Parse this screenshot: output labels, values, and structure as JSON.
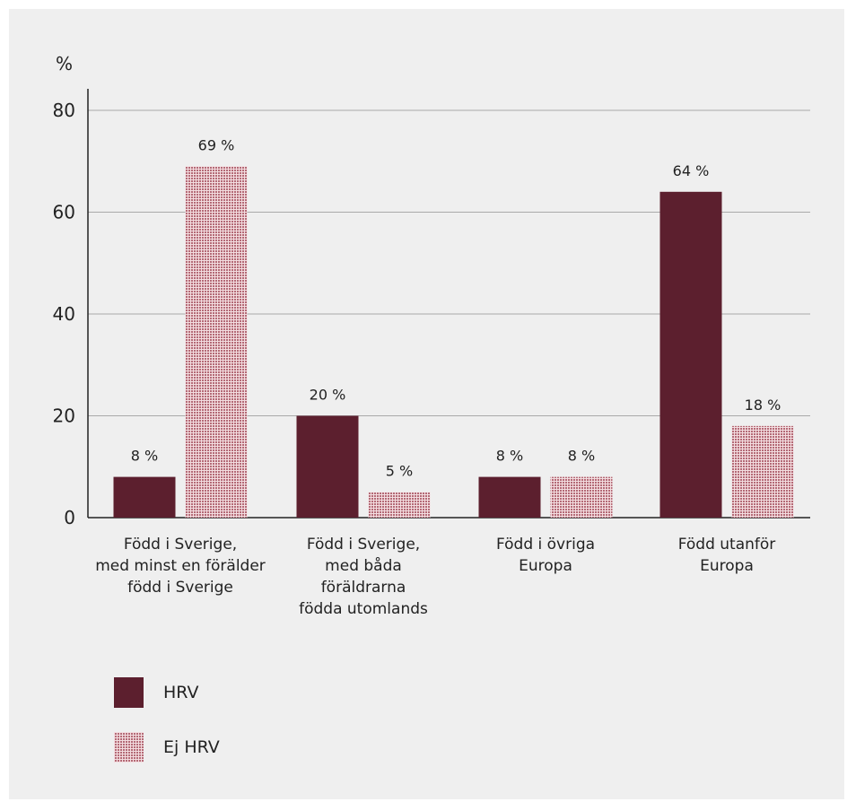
{
  "chart_data": {
    "type": "bar",
    "ylabel": "%",
    "ylim": [
      0,
      80
    ],
    "yticks": [
      0,
      20,
      40,
      60,
      80
    ],
    "grid": true,
    "categories": [
      [
        "Född i Sverige,",
        "med minst en förälder",
        "född i Sverige"
      ],
      [
        "Född i Sverige,",
        "med båda",
        "föräldrarna",
        "födda utomlands"
      ],
      [
        "Född i övriga",
        "Europa"
      ],
      [
        "Född utanför",
        "Europa"
      ]
    ],
    "series": [
      {
        "name": "HRV",
        "values": [
          8,
          20,
          8,
          64
        ],
        "labels": [
          "8 %",
          "20 %",
          "8 %",
          "64 %"
        ],
        "color": "#5c1f2e",
        "pattern": "solid"
      },
      {
        "name": "Ej HRV",
        "values": [
          69,
          5,
          8,
          18
        ],
        "labels": [
          "69 %",
          "5 %",
          "8 %",
          "18 %"
        ],
        "color": "#b46a76",
        "pattern": "grid"
      }
    ],
    "legend_position": "bottom-left"
  },
  "legend": [
    {
      "label": "HRV"
    },
    {
      "label": "Ej HRV"
    }
  ]
}
